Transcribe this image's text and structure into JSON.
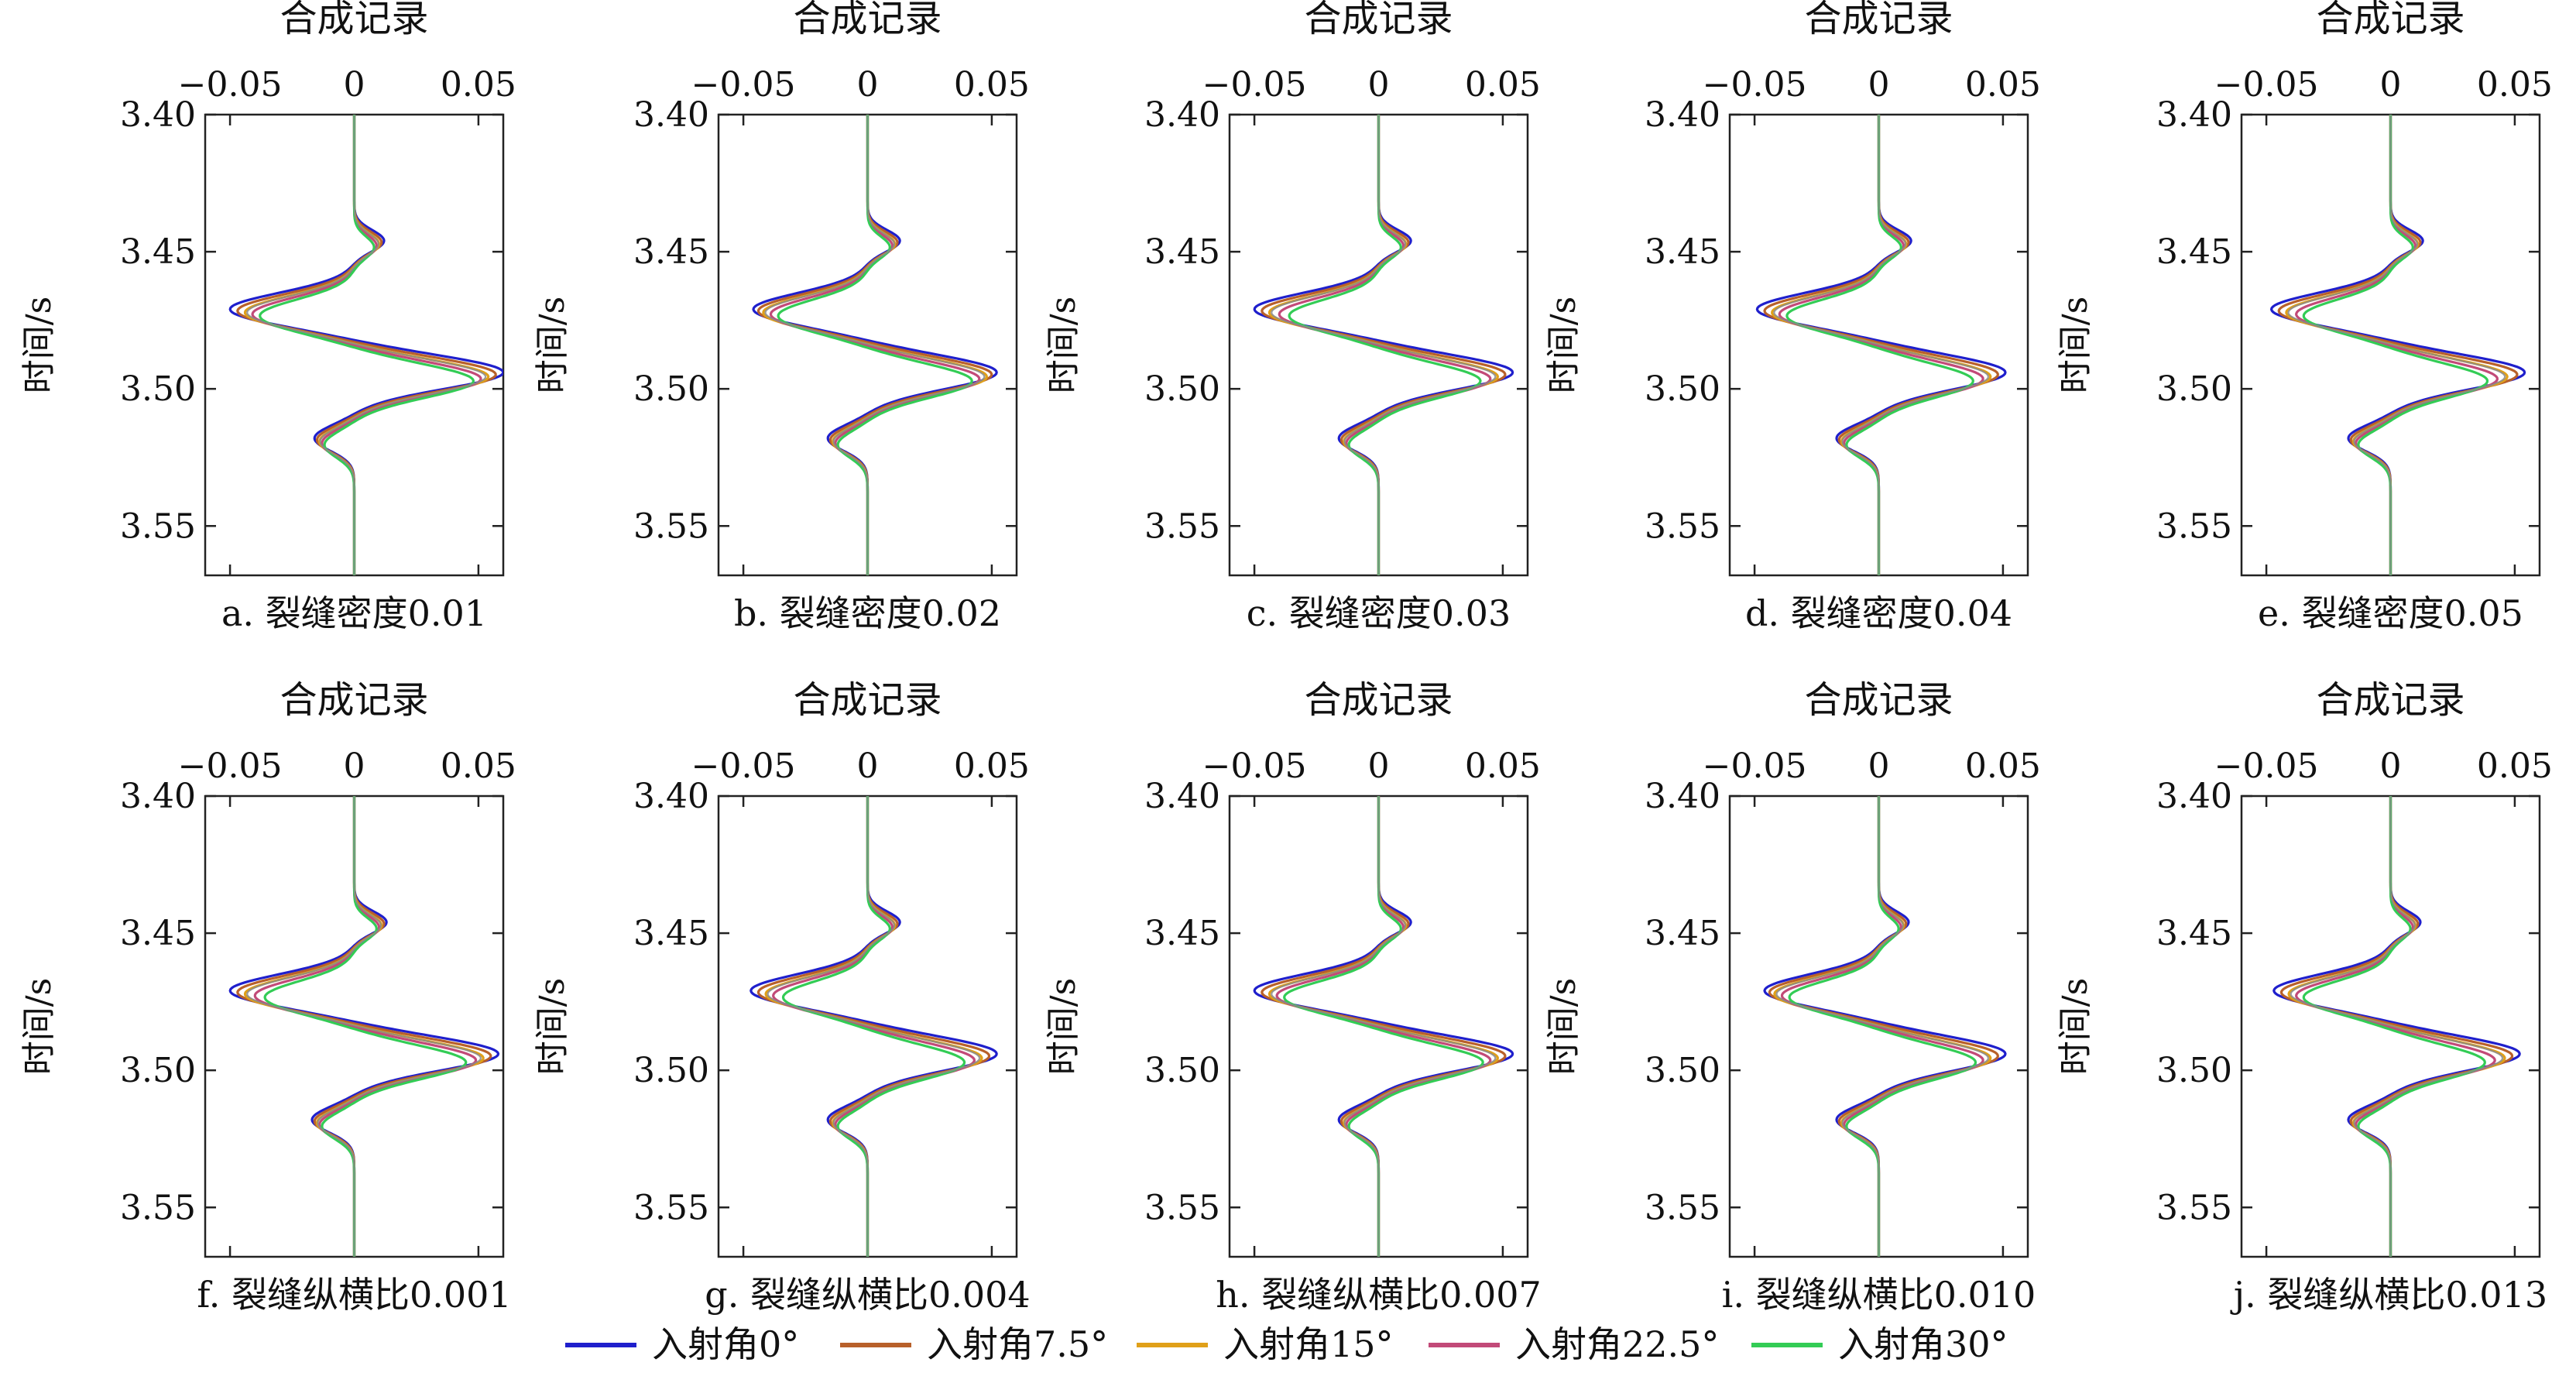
{
  "chart_data": {
    "type": "line",
    "legend": {
      "placement": "bottom",
      "entries": [
        {
          "label": "入射角0°",
          "color": "#1f1fcc"
        },
        {
          "label": "入射角7.5°",
          "color": "#b8602a"
        },
        {
          "label": "入射角15°",
          "color": "#e0a019"
        },
        {
          "label": "入射角22.5°",
          "color": "#c24a78"
        },
        {
          "label": "入射角30°",
          "color": "#33cc55"
        }
      ]
    },
    "xticks": [
      "−0.05",
      "0",
      "0.05"
    ],
    "xtick_values": [
      -0.05,
      0,
      0.05
    ],
    "xlim": [
      -0.06,
      0.06
    ],
    "yticks": [
      "3.40",
      "3.45",
      "3.50",
      "3.55"
    ],
    "ytick_values": [
      3.4,
      3.45,
      3.5,
      3.55
    ],
    "ylim": [
      3.4,
      3.568
    ],
    "ylabel": "时间/s",
    "panels": [
      {
        "title": "合成记录",
        "caption": "a. 裂缝密度0.01",
        "series": [
          {
            "name": "入射角0°",
            "trough": -0.05,
            "peak": 0.06,
            "small_neg": -0.016,
            "small_pos": 0.012
          },
          {
            "name": "入射角7.5°",
            "trough": -0.047,
            "peak": 0.057,
            "small_neg": -0.015,
            "small_pos": 0.011
          },
          {
            "name": "入射角15°",
            "trough": -0.044,
            "peak": 0.054,
            "small_neg": -0.014,
            "small_pos": 0.01
          },
          {
            "name": "入射角22.5°",
            "trough": -0.041,
            "peak": 0.051,
            "small_neg": -0.013,
            "small_pos": 0.009
          },
          {
            "name": "入射角30°",
            "trough": -0.038,
            "peak": 0.048,
            "small_neg": -0.012,
            "small_pos": 0.008
          }
        ]
      },
      {
        "title": "合成记录",
        "caption": "b. 裂缝密度0.02",
        "series": [
          {
            "name": "入射角0°",
            "trough": -0.046,
            "peak": 0.052,
            "small_neg": -0.016,
            "small_pos": 0.013
          },
          {
            "name": "入射角7.5°",
            "trough": -0.044,
            "peak": 0.05,
            "small_neg": -0.015,
            "small_pos": 0.012
          },
          {
            "name": "入射角15°",
            "trough": -0.042,
            "peak": 0.048,
            "small_neg": -0.014,
            "small_pos": 0.011
          },
          {
            "name": "入射角22.5°",
            "trough": -0.039,
            "peak": 0.045,
            "small_neg": -0.013,
            "small_pos": 0.01
          },
          {
            "name": "入射角30°",
            "trough": -0.036,
            "peak": 0.042,
            "small_neg": -0.012,
            "small_pos": 0.009
          }
        ]
      },
      {
        "title": "合成记录",
        "caption": "c. 裂缝密度0.03",
        "series": [
          {
            "name": "入射角0°",
            "trough": -0.05,
            "peak": 0.054,
            "small_neg": -0.016,
            "small_pos": 0.013
          },
          {
            "name": "入射角7.5°",
            "trough": -0.047,
            "peak": 0.051,
            "small_neg": -0.015,
            "small_pos": 0.012
          },
          {
            "name": "入射角15°",
            "trough": -0.044,
            "peak": 0.048,
            "small_neg": -0.014,
            "small_pos": 0.011
          },
          {
            "name": "入射角22.5°",
            "trough": -0.04,
            "peak": 0.045,
            "small_neg": -0.013,
            "small_pos": 0.01
          },
          {
            "name": "入射角30°",
            "trough": -0.036,
            "peak": 0.041,
            "small_neg": -0.012,
            "small_pos": 0.009
          }
        ]
      },
      {
        "title": "合成记录",
        "caption": "d. 裂缝密度0.04",
        "series": [
          {
            "name": "入射角0°",
            "trough": -0.049,
            "peak": 0.051,
            "small_neg": -0.017,
            "small_pos": 0.013
          },
          {
            "name": "入射角7.5°",
            "trough": -0.046,
            "peak": 0.048,
            "small_neg": -0.016,
            "small_pos": 0.012
          },
          {
            "name": "入射角15°",
            "trough": -0.043,
            "peak": 0.045,
            "small_neg": -0.015,
            "small_pos": 0.011
          },
          {
            "name": "入射角22.5°",
            "trough": -0.04,
            "peak": 0.042,
            "small_neg": -0.014,
            "small_pos": 0.01
          },
          {
            "name": "入射角30°",
            "trough": -0.037,
            "peak": 0.038,
            "small_neg": -0.013,
            "small_pos": 0.009
          }
        ]
      },
      {
        "title": "合成记录",
        "caption": "e. 裂缝密度0.05",
        "series": [
          {
            "name": "入射角0°",
            "trough": -0.048,
            "peak": 0.054,
            "small_neg": -0.017,
            "small_pos": 0.013
          },
          {
            "name": "入射角7.5°",
            "trough": -0.045,
            "peak": 0.051,
            "small_neg": -0.016,
            "small_pos": 0.012
          },
          {
            "name": "入射角15°",
            "trough": -0.042,
            "peak": 0.047,
            "small_neg": -0.015,
            "small_pos": 0.011
          },
          {
            "name": "入射角22.5°",
            "trough": -0.038,
            "peak": 0.043,
            "small_neg": -0.014,
            "small_pos": 0.01
          },
          {
            "name": "入射角30°",
            "trough": -0.035,
            "peak": 0.039,
            "small_neg": -0.013,
            "small_pos": 0.009
          }
        ]
      },
      {
        "title": "合成记录",
        "caption": "f. 裂缝纵横比0.001",
        "series": [
          {
            "name": "入射角0°",
            "trough": -0.05,
            "peak": 0.058,
            "small_neg": -0.017,
            "small_pos": 0.013
          },
          {
            "name": "入射角7.5°",
            "trough": -0.047,
            "peak": 0.055,
            "small_neg": -0.016,
            "small_pos": 0.012
          },
          {
            "name": "入射角15°",
            "trough": -0.044,
            "peak": 0.052,
            "small_neg": -0.015,
            "small_pos": 0.011
          },
          {
            "name": "入射角22.5°",
            "trough": -0.04,
            "peak": 0.049,
            "small_neg": -0.014,
            "small_pos": 0.01
          },
          {
            "name": "入射角30°",
            "trough": -0.036,
            "peak": 0.045,
            "small_neg": -0.013,
            "small_pos": 0.009
          }
        ]
      },
      {
        "title": "合成记录",
        "caption": "g. 裂缝纵横比0.004",
        "series": [
          {
            "name": "入射角0°",
            "trough": -0.047,
            "peak": 0.052,
            "small_neg": -0.016,
            "small_pos": 0.013
          },
          {
            "name": "入射角7.5°",
            "trough": -0.044,
            "peak": 0.049,
            "small_neg": -0.015,
            "small_pos": 0.012
          },
          {
            "name": "入射角15°",
            "trough": -0.041,
            "peak": 0.046,
            "small_neg": -0.014,
            "small_pos": 0.011
          },
          {
            "name": "入射角22.5°",
            "trough": -0.038,
            "peak": 0.043,
            "small_neg": -0.013,
            "small_pos": 0.01
          },
          {
            "name": "入射角30°",
            "trough": -0.034,
            "peak": 0.039,
            "small_neg": -0.012,
            "small_pos": 0.009
          }
        ]
      },
      {
        "title": "合成记录",
        "caption": "h. 裂缝纵横比0.007",
        "series": [
          {
            "name": "入射角0°",
            "trough": -0.05,
            "peak": 0.054,
            "small_neg": -0.016,
            "small_pos": 0.013
          },
          {
            "name": "入射角7.5°",
            "trough": -0.047,
            "peak": 0.051,
            "small_neg": -0.015,
            "small_pos": 0.012
          },
          {
            "name": "入射角15°",
            "trough": -0.044,
            "peak": 0.048,
            "small_neg": -0.014,
            "small_pos": 0.011
          },
          {
            "name": "入射角22.5°",
            "trough": -0.041,
            "peak": 0.045,
            "small_neg": -0.013,
            "small_pos": 0.01
          },
          {
            "name": "入射角30°",
            "trough": -0.038,
            "peak": 0.042,
            "small_neg": -0.012,
            "small_pos": 0.009
          }
        ]
      },
      {
        "title": "合成记录",
        "caption": "i. 裂缝纵横比0.010",
        "series": [
          {
            "name": "入射角0°",
            "trough": -0.046,
            "peak": 0.051,
            "small_neg": -0.017,
            "small_pos": 0.012
          },
          {
            "name": "入射角7.5°",
            "trough": -0.044,
            "peak": 0.048,
            "small_neg": -0.016,
            "small_pos": 0.011
          },
          {
            "name": "入射角15°",
            "trough": -0.042,
            "peak": 0.045,
            "small_neg": -0.015,
            "small_pos": 0.01
          },
          {
            "name": "入射角22.5°",
            "trough": -0.039,
            "peak": 0.042,
            "small_neg": -0.014,
            "small_pos": 0.009
          },
          {
            "name": "入射角30°",
            "trough": -0.036,
            "peak": 0.039,
            "small_neg": -0.013,
            "small_pos": 0.008
          }
        ]
      },
      {
        "title": "合成记录",
        "caption": "j. 裂缝纵横比0.013",
        "series": [
          {
            "name": "入射角0°",
            "trough": -0.047,
            "peak": 0.052,
            "small_neg": -0.017,
            "small_pos": 0.012
          },
          {
            "name": "入射角7.5°",
            "trough": -0.044,
            "peak": 0.049,
            "small_neg": -0.016,
            "small_pos": 0.011
          },
          {
            "name": "入射角15°",
            "trough": -0.041,
            "peak": 0.046,
            "small_neg": -0.015,
            "small_pos": 0.01
          },
          {
            "name": "入射角22.5°",
            "trough": -0.038,
            "peak": 0.042,
            "small_neg": -0.014,
            "small_pos": 0.009
          },
          {
            "name": "入射角30°",
            "trough": -0.035,
            "peak": 0.038,
            "small_neg": -0.013,
            "small_pos": 0.008
          }
        ]
      }
    ]
  }
}
